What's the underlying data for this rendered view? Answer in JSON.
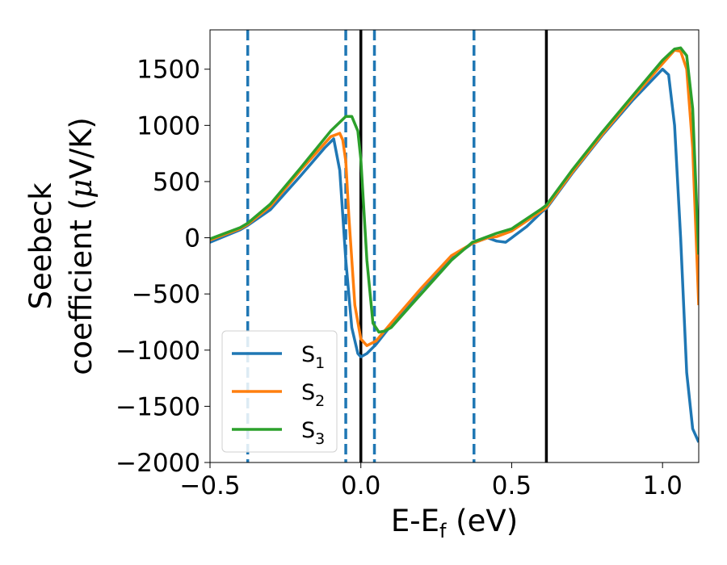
{
  "chart_data": {
    "type": "line",
    "title": "",
    "xlabel": {
      "main": "E-E",
      "sub": "f",
      "unit": " (eV)"
    },
    "ylabel": {
      "line1": "Seebeck",
      "line2_pre": "coefficient  (",
      "line2_mu": "μ",
      "line2_post": "V/K)"
    },
    "xlim": [
      -0.5,
      1.12
    ],
    "ylim": [
      -2000,
      1850
    ],
    "xticks": [
      -0.5,
      0.0,
      0.5,
      1.0
    ],
    "xtick_labels": [
      "−0.5",
      "0.0",
      "0.5",
      "1.0"
    ],
    "yticks": [
      -2000,
      -1500,
      -1000,
      -500,
      0,
      500,
      1000,
      1500
    ],
    "ytick_labels": [
      "−2000",
      "−1500",
      "−1000",
      "−500",
      "0",
      "500",
      "1000",
      "1500"
    ],
    "grid": false,
    "legend_position": "lower-left",
    "vlines_dashed": [
      -0.375,
      -0.05,
      0.045,
      0.375
    ],
    "vlines_solid": [
      0.0,
      0.615
    ],
    "series": [
      {
        "name": "S",
        "sub": "1",
        "color": "#1f77b4",
        "x": [
          -0.5,
          -0.4,
          -0.375,
          -0.3,
          -0.2,
          -0.12,
          -0.09,
          -0.07,
          -0.05,
          -0.03,
          -0.01,
          0.0,
          0.02,
          0.05,
          0.1,
          0.2,
          0.3,
          0.37,
          0.42,
          0.45,
          0.48,
          0.5,
          0.55,
          0.6,
          0.615,
          0.7,
          0.8,
          0.9,
          1.0,
          1.02,
          1.04,
          1.06,
          1.08,
          1.1,
          1.12
        ],
        "y": [
          -40,
          70,
          110,
          250,
          550,
          800,
          880,
          600,
          -200,
          -800,
          -1030,
          -1060,
          -1030,
          -950,
          -780,
          -460,
          -180,
          -50,
          0,
          -30,
          -40,
          0,
          100,
          230,
          260,
          570,
          910,
          1220,
          1500,
          1450,
          1000,
          0,
          -1200,
          -1700,
          -1820
        ]
      },
      {
        "name": "S",
        "sub": "2",
        "color": "#ff7f0e",
        "x": [
          -0.5,
          -0.4,
          -0.375,
          -0.3,
          -0.2,
          -0.1,
          -0.07,
          -0.06,
          -0.05,
          -0.04,
          -0.02,
          0.0,
          0.02,
          0.05,
          0.1,
          0.2,
          0.3,
          0.37,
          0.42,
          0.45,
          0.5,
          0.55,
          0.6,
          0.615,
          0.7,
          0.8,
          0.9,
          1.0,
          1.04,
          1.06,
          1.08,
          1.1,
          1.12
        ],
        "y": [
          -20,
          80,
          120,
          280,
          600,
          900,
          930,
          870,
          680,
          200,
          -600,
          -900,
          -960,
          -920,
          -760,
          -450,
          -160,
          -50,
          0,
          10,
          60,
          150,
          240,
          270,
          580,
          920,
          1240,
          1550,
          1670,
          1660,
          1500,
          800,
          -600
        ]
      },
      {
        "name": "S",
        "sub": "3",
        "color": "#2ca02c",
        "x": [
          -0.5,
          -0.4,
          -0.375,
          -0.3,
          -0.2,
          -0.1,
          -0.05,
          -0.03,
          -0.01,
          0.0,
          0.02,
          0.04,
          0.06,
          0.08,
          0.1,
          0.2,
          0.3,
          0.37,
          0.42,
          0.45,
          0.5,
          0.55,
          0.6,
          0.615,
          0.7,
          0.8,
          0.9,
          1.0,
          1.04,
          1.06,
          1.08,
          1.1,
          1.12
        ],
        "y": [
          -10,
          90,
          130,
          300,
          620,
          950,
          1080,
          1080,
          950,
          700,
          -200,
          -760,
          -840,
          -830,
          -800,
          -500,
          -200,
          -40,
          10,
          40,
          80,
          170,
          260,
          290,
          600,
          940,
          1260,
          1580,
          1680,
          1690,
          1620,
          1150,
          -150
        ]
      }
    ]
  }
}
